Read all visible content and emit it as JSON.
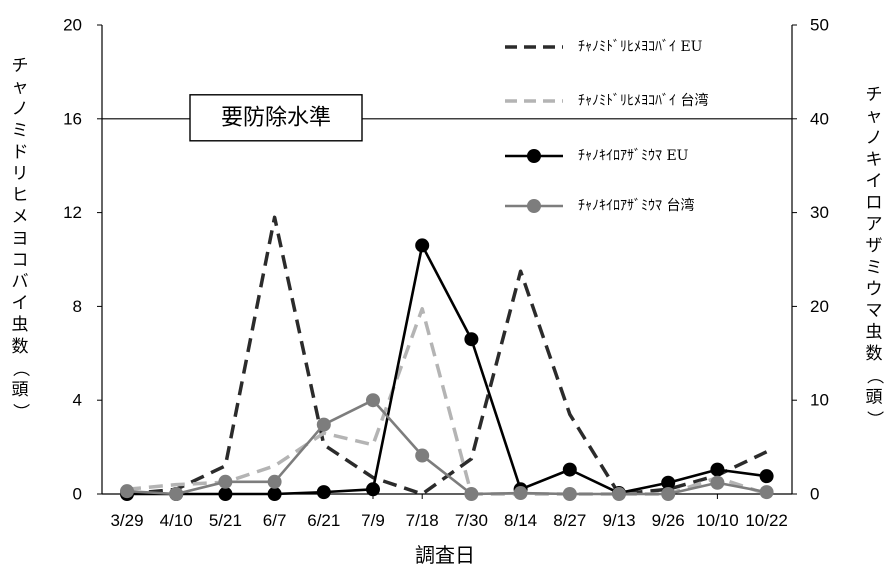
{
  "chart_data": {
    "type": "line",
    "categories": [
      "3/29",
      "4/10",
      "5/21",
      "6/7",
      "6/21",
      "7/9",
      "7/18",
      "7/30",
      "8/14",
      "8/27",
      "9/13",
      "9/26",
      "10/10",
      "10/22"
    ],
    "xlabel": "調査日",
    "ylabel_left": "チャノミドリヒメヨコバイ虫数（頭）",
    "ylabel_right": "チャノキイロアザミウマ虫数（頭）",
    "ylim_left": [
      0,
      20
    ],
    "ylim_right": [
      0,
      50
    ],
    "yticks_left": [
      "0",
      "4",
      "8",
      "12",
      "16",
      "20"
    ],
    "yticks_right": [
      "0",
      "10",
      "20",
      "30",
      "40",
      "50"
    ],
    "threshold": {
      "label": "要防除水準",
      "value_left": 16
    },
    "legend_position": "top-right",
    "grid": false,
    "series": [
      {
        "name": "ﾁｬﾉﾐﾄﾞﾘﾋﾒﾖｺﾊﾞｲ EU",
        "axis": "left",
        "style": "dashed",
        "markers": false,
        "color": "#2b2b2b",
        "values": [
          0,
          0.2,
          1.2,
          11.8,
          2.1,
          0.7,
          0,
          1.5,
          9.5,
          3.4,
          0,
          0.2,
          0.8,
          1.8
        ]
      },
      {
        "name": "ﾁｬﾉﾐﾄﾞﾘﾋﾒﾖｺﾊﾞｲ 台湾",
        "axis": "left",
        "style": "dashed",
        "markers": false,
        "color": "#b4b4b4",
        "values": [
          0.2,
          0.4,
          0.5,
          1.2,
          2.6,
          2.1,
          7.9,
          0,
          0,
          0,
          0,
          0,
          0.7,
          0
        ]
      },
      {
        "name": "ﾁｬﾉｷｲﾛｱｻﾞﾐｳﾏ EU",
        "axis": "right",
        "style": "solid",
        "markers": true,
        "color": "#000000",
        "values": [
          0,
          0,
          0,
          0,
          0.2,
          0.5,
          26.5,
          16.5,
          0.5,
          2.6,
          0.1,
          1.2,
          2.6,
          1.9
        ]
      },
      {
        "name": "ﾁｬﾉｷｲﾛｱｻﾞﾐｳﾏ 台湾",
        "axis": "right",
        "style": "solid",
        "markers": true,
        "color": "#7d7d7d",
        "values": [
          0.3,
          0,
          1.3,
          1.3,
          7.4,
          10,
          4.1,
          0,
          0.1,
          0,
          0,
          0,
          1.2,
          0.2
        ]
      }
    ]
  }
}
